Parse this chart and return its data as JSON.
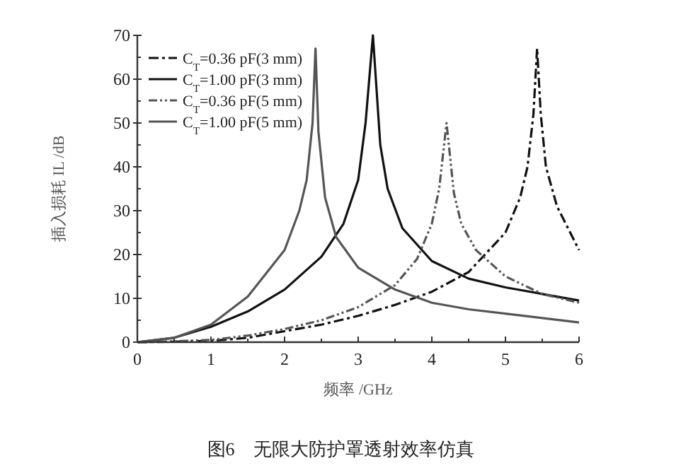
{
  "chart_data": {
    "type": "line",
    "xlabel": "频率 /GHz",
    "ylabel": "插入损耗 IL /dB",
    "annotations": [
      "图6　无限大防护罩透射效率仿真"
    ],
    "xlim": [
      0,
      6
    ],
    "ylim": [
      0,
      70
    ],
    "xticks": [
      0,
      1,
      2,
      3,
      4,
      5,
      6
    ],
    "yticks": [
      0,
      10,
      20,
      30,
      40,
      50,
      60,
      70
    ],
    "grid": false,
    "legend": "top left",
    "series": [
      {
        "name": "C$_{T}$=0.36 pF(3 mm)",
        "color": "#111111",
        "line_style": "dashdot",
        "x": [
          0,
          0.5,
          1,
          1.5,
          2,
          2.5,
          3,
          3.5,
          4,
          4.5,
          5,
          5.2,
          5.3,
          5.38,
          5.43,
          5.48,
          5.55,
          5.7,
          6
        ],
        "values": [
          0,
          0.1,
          0.3,
          1,
          2.5,
          4,
          6,
          8.5,
          11.5,
          16,
          25,
          33,
          40,
          52,
          67,
          52,
          40,
          31,
          21
        ]
      },
      {
        "name": "C$_{T}$=1.00 pF(3 mm)",
        "color": "#111111",
        "line_style": "solid",
        "x": [
          0,
          0.5,
          1,
          1.5,
          2,
          2.5,
          2.8,
          3,
          3.1,
          3.2,
          3.3,
          3.4,
          3.6,
          4,
          4.5,
          5,
          5.5,
          6
        ],
        "values": [
          0,
          1,
          3.5,
          7,
          12,
          19.5,
          27,
          37,
          50,
          70,
          45,
          35,
          26,
          18.5,
          14.5,
          12.5,
          11,
          9.5
        ]
      },
      {
        "name": "C$_{T}$=0.36 pF(5 mm)",
        "color": "#555555",
        "line_style": "dashdotdot",
        "x": [
          0,
          0.5,
          1,
          1.5,
          2,
          2.5,
          3,
          3.5,
          3.8,
          4,
          4.1,
          4.2,
          4.3,
          4.4,
          4.6,
          5,
          5.5,
          6
        ],
        "values": [
          0,
          0.2,
          0.5,
          1.5,
          3,
          5,
          8,
          13,
          19,
          27,
          35,
          50,
          34,
          27,
          21,
          15,
          11,
          9
        ]
      },
      {
        "name": "C$_{T}$=1.00 pF(5 mm)",
        "color": "#555555",
        "line_style": "solid",
        "x": [
          0,
          0.5,
          1,
          1.5,
          2,
          2.2,
          2.3,
          2.38,
          2.42,
          2.46,
          2.55,
          2.7,
          3,
          3.5,
          4,
          4.5,
          5,
          5.5,
          6
        ],
        "values": [
          0,
          1,
          4,
          10.4,
          21,
          30,
          37,
          50,
          67,
          48,
          33,
          24,
          17,
          12,
          9,
          7.5,
          6.5,
          5.5,
          4.5
        ]
      }
    ]
  }
}
